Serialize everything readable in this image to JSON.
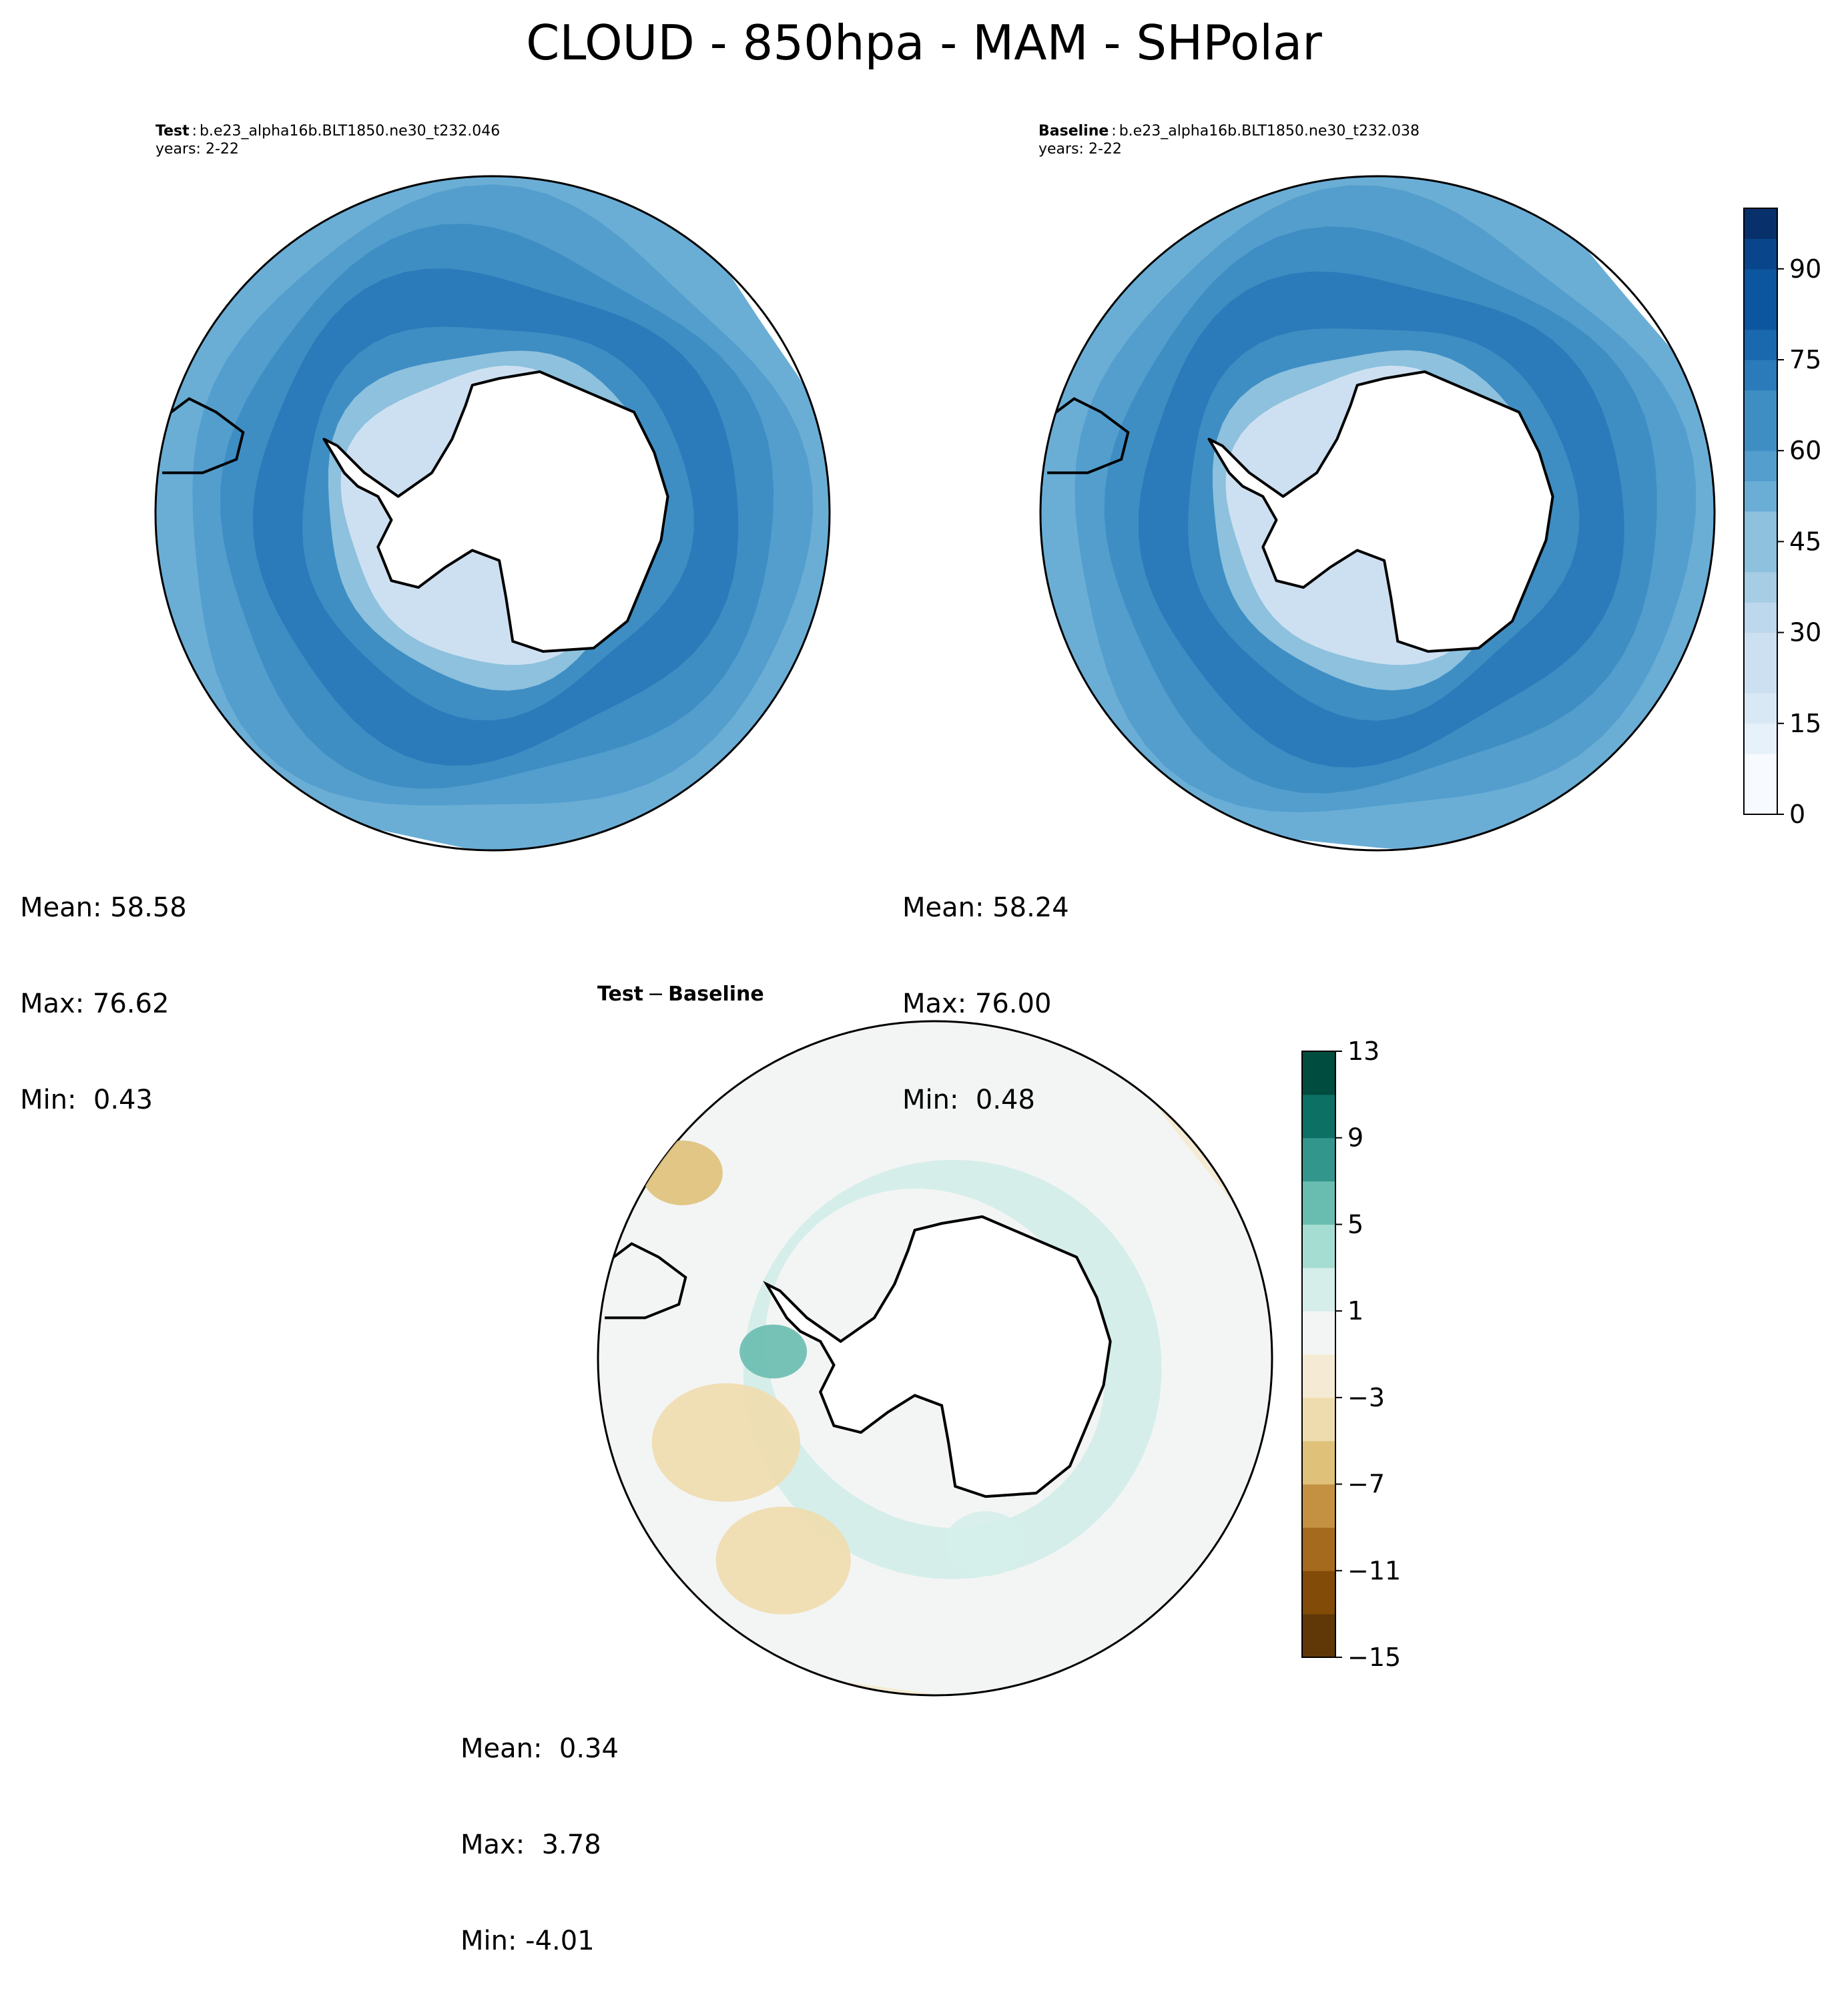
{
  "figure": {
    "title": "CLOUD - 850hpa - MAM - SHPolar"
  },
  "panels": {
    "test": {
      "label": "Test",
      "case": "b.e23_alpha16b.BLT1850.ne30_t232.046",
      "years": "years: 2-22",
      "stats": {
        "mean": "Mean: 58.58",
        "max": "Max: 76.62",
        "min": "Min:  0.43"
      }
    },
    "baseline": {
      "label": "Baseline",
      "case": "b.e23_alpha16b.BLT1850.ne30_t232.038",
      "years": "years: 2-22",
      "stats": {
        "mean": "Mean: 58.24",
        "max": "Max: 76.00",
        "min": "Min:  0.48"
      }
    },
    "diff": {
      "title_a": "Test",
      "title_op": "−",
      "title_b": "Baseline",
      "stats": {
        "mean": "Mean:  0.34",
        "max": "Max:  3.78",
        "min": "Min: -4.01"
      }
    }
  },
  "colorbars": {
    "main": {
      "colormap": "Blues",
      "range": [
        0,
        100
      ],
      "ticks": [
        "0",
        "15",
        "30",
        "45",
        "60",
        "75",
        "90"
      ],
      "tick_values": [
        0,
        15,
        30,
        45,
        60,
        75,
        90
      ]
    },
    "diff": {
      "colormap": "BrBG",
      "range": [
        -15,
        13
      ],
      "ticks": [
        "−15",
        "−11",
        "−7",
        "−3",
        "1",
        "5",
        "9",
        "13"
      ],
      "tick_values": [
        -15,
        -11,
        -7,
        -3,
        1,
        5,
        9,
        13
      ]
    }
  },
  "colors": {
    "blues": [
      "#f7fbff",
      "#e7f1fa",
      "#d9e8f5",
      "#cde0f1",
      "#bdd7ec",
      "#a6cde4",
      "#8dc1dd",
      "#6aaed6",
      "#539ecd",
      "#3e8ec4",
      "#2b7bba",
      "#1a68ae",
      "#0c56a0",
      "#08458a",
      "#08306b"
    ],
    "brbg": [
      "#603706",
      "#824b08",
      "#a66a1f",
      "#c49142",
      "#dfc17a",
      "#efdcae",
      "#f5ebd4",
      "#f3f5f4",
      "#d5eeea",
      "#a6ddd2",
      "#69bdb0",
      "#32968c",
      "#0d7065",
      "#004c3e"
    ],
    "land": "#ffffff",
    "coastline": "#000000"
  }
}
